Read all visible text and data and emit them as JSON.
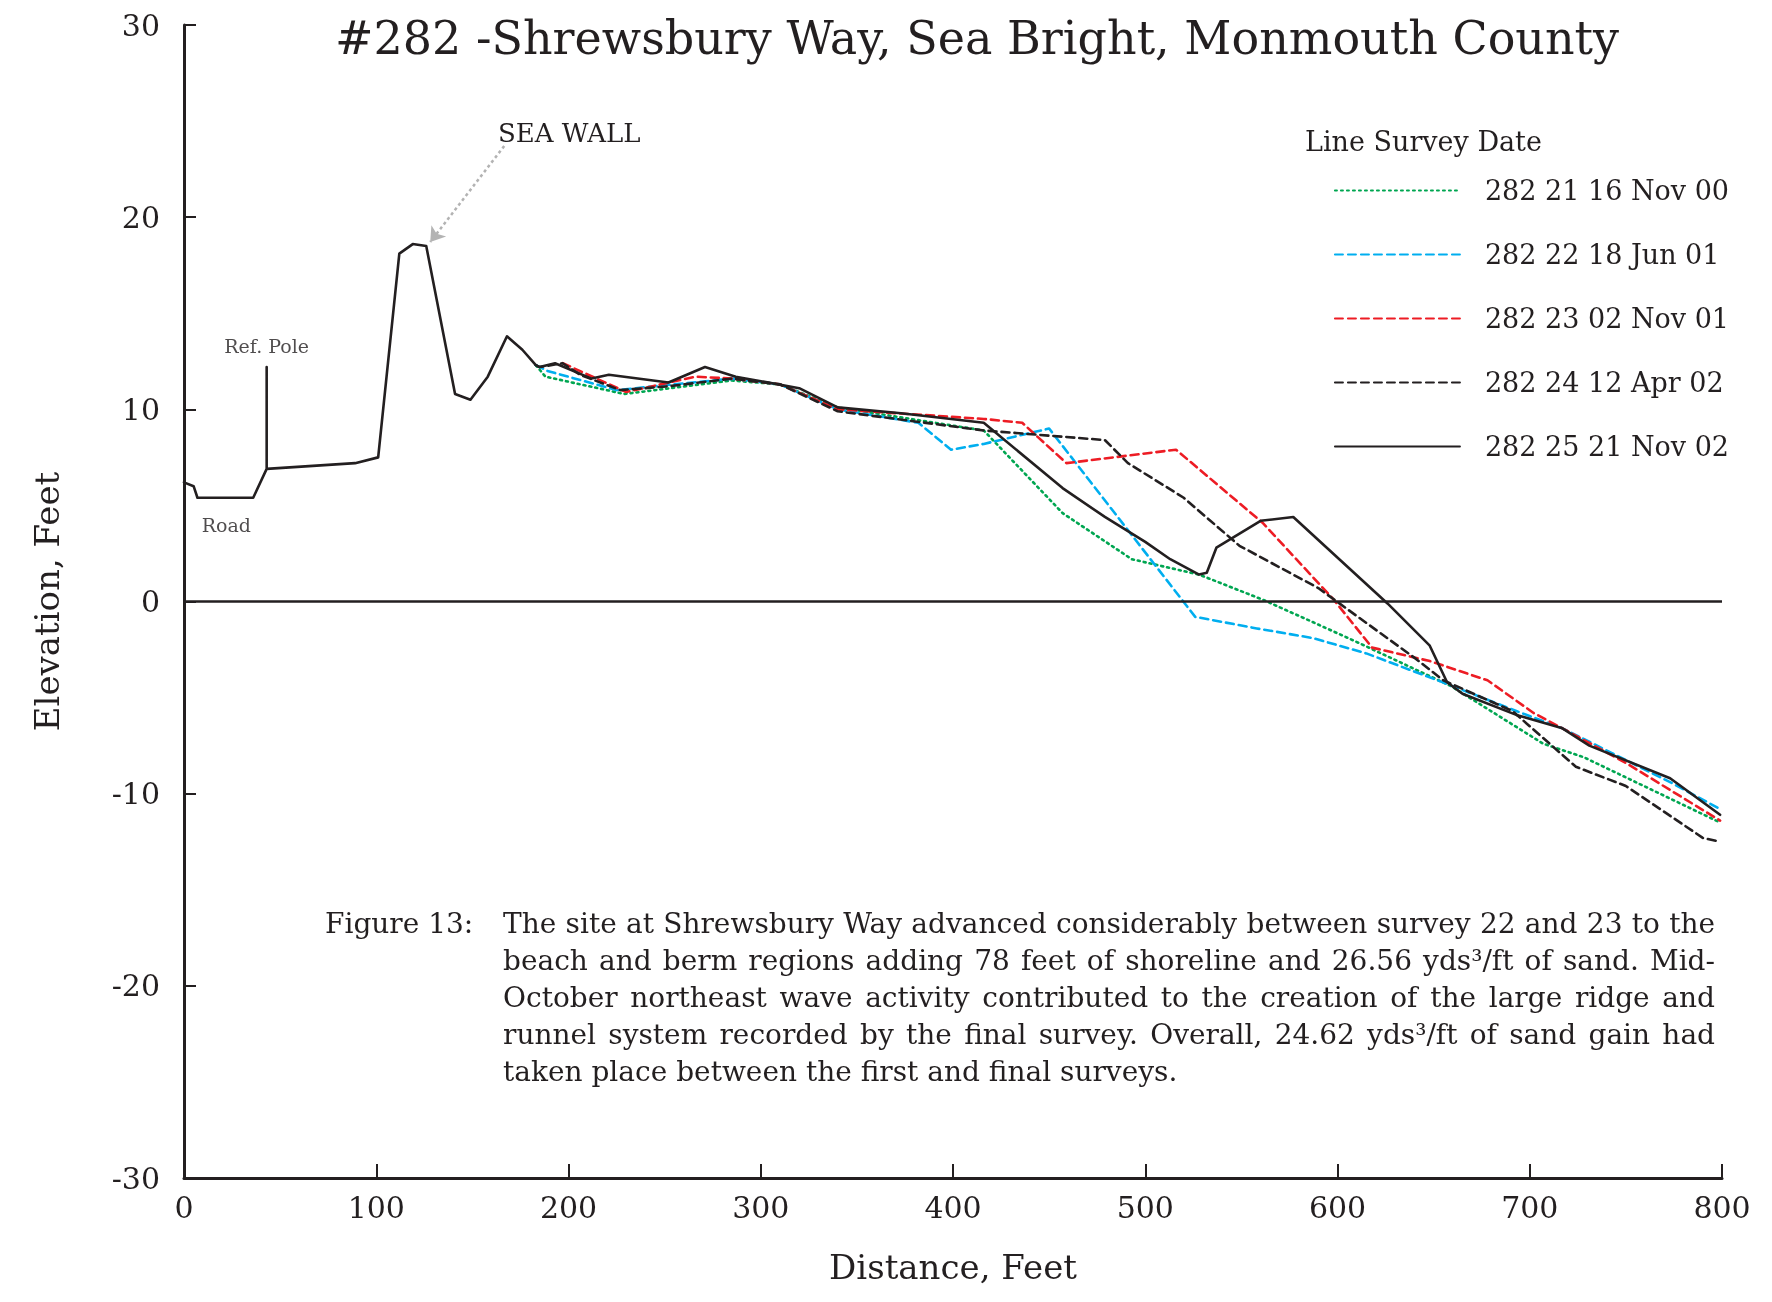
{
  "chart_data": {
    "type": "line",
    "title": "#282 -Shrewsbury Way, Sea Bright, Monmouth County",
    "xlabel": "Distance, Feet",
    "ylabel": "Elevation, Feet",
    "legend_title": "Line Survey Date",
    "legend": "top right",
    "grid": false,
    "marker": "none",
    "xlim": [
      0,
      800
    ],
    "xticks": [
      0,
      100,
      200,
      300,
      400,
      500,
      600,
      700,
      800
    ],
    "ylim": [
      -30,
      30
    ],
    "yticks": [
      -30,
      -20,
      -10,
      0,
      10,
      20,
      30
    ],
    "ref_lines": [
      {
        "axis": "y",
        "value": 0,
        "color": "#231f20"
      }
    ],
    "annotations": [
      {
        "text": "SEA WALL",
        "x": 126,
        "y": 18.5
      },
      {
        "text": "Ref. Pole",
        "x": 43,
        "y": 12.2
      },
      {
        "text": "Road",
        "x": 22,
        "y": 5.4
      },
      "Figure 13:",
      "The site at Shrewsbury Way advanced considerably between survey 22 and 23 to the beach and berm regions adding 78 feet of shoreline and 26.56 yds³/ft of sand. Mid-October northeast wave activity contributed to the creation of the large ridge and runnel system recorded by the final survey. Overall, 24.62 yds³/ft of sand gain had taken place between the first and final surveys."
    ],
    "series": [
      {
        "name": "282 21 16 Nov 00",
        "color": "#00a651",
        "line_style": "dotted",
        "x": [
          183,
          188,
          229,
          285,
          310,
          340,
          416,
          457,
          493,
          528,
          561,
          590,
          612,
          659,
          707,
          728,
          799
        ],
        "values": [
          12.3,
          11.7,
          10.8,
          11.5,
          11.3,
          10.1,
          8.9,
          4.6,
          2.2,
          1.4,
          0.1,
          -1.2,
          -2.2,
          -4.4,
          -7.4,
          -8.1,
          -11.5
        ]
      },
      {
        "name": "282 22 18 Jun 01",
        "color": "#00aeef",
        "line_style": "dashed",
        "x": [
          183,
          189,
          225,
          285,
          310,
          340,
          382,
          399,
          416,
          450,
          526,
          558,
          587,
          615,
          652,
          693,
          717,
          773,
          799
        ],
        "values": [
          12.3,
          12.0,
          11.0,
          11.6,
          11.3,
          10.0,
          9.3,
          7.9,
          8.2,
          9.0,
          -0.8,
          -1.4,
          -1.9,
          -2.7,
          -4.1,
          -5.7,
          -6.6,
          -9.4,
          -10.8
        ]
      },
      {
        "name": "282 23 02 Nov 01",
        "color": "#ed1c24",
        "line_style": "dashed",
        "x": [
          197,
          230,
          266,
          285,
          310,
          340,
          416,
          436,
          459,
          516,
          561,
          598,
          618,
          648,
          678,
          702,
          717,
          750,
          799
        ],
        "values": [
          12.4,
          10.9,
          11.7,
          11.6,
          11.3,
          10.0,
          9.5,
          9.3,
          7.2,
          7.9,
          4.1,
          0.1,
          -2.4,
          -3.1,
          -4.1,
          -5.8,
          -6.6,
          -8.4,
          -11.4
        ]
      },
      {
        "name": "282 24 12 Apr 02",
        "color": "#231f20",
        "line_style": "dashed",
        "x": [
          183,
          185,
          197,
          206,
          227,
          252,
          285,
          310,
          340,
          416,
          479,
          491,
          520,
          549,
          590,
          601,
          641,
          655,
          691,
          724,
          750,
          790,
          799
        ],
        "values": [
          12.3,
          12.2,
          12.4,
          11.8,
          11.0,
          11.2,
          11.6,
          11.3,
          9.9,
          8.9,
          8.4,
          7.2,
          5.4,
          2.9,
          0.7,
          -0.1,
          -3.0,
          -4.1,
          -5.7,
          -8.6,
          -9.6,
          -12.3,
          -12.5
        ]
      },
      {
        "name": "282 25 21 Nov 02",
        "color": "#231f20",
        "line_style": "solid",
        "x": [
          0,
          5,
          7,
          36,
          43,
          43,
          43,
          89,
          101,
          112,
          119,
          126,
          141,
          149,
          158,
          168,
          176,
          183,
          185,
          193,
          212,
          221,
          252,
          271,
          287,
          320,
          340,
          373,
          416,
          457,
          479,
          500,
          513,
          528,
          532,
          537,
          560,
          577,
          626,
          648,
          657,
          665,
          693,
          717,
          731,
          773,
          799
        ],
        "values": [
          6.2,
          6.0,
          5.4,
          5.4,
          6.9,
          12.2,
          6.9,
          7.2,
          7.5,
          18.1,
          18.6,
          18.5,
          10.8,
          10.5,
          11.7,
          13.8,
          13.1,
          12.3,
          12.2,
          12.4,
          11.6,
          11.8,
          11.4,
          12.2,
          11.7,
          11.1,
          10.1,
          9.8,
          9.3,
          5.9,
          4.4,
          3.1,
          2.2,
          1.4,
          1.5,
          2.8,
          4.2,
          4.4,
          -0.1,
          -2.3,
          -4.2,
          -4.8,
          -5.9,
          -6.6,
          -7.5,
          -9.2,
          -11.1
        ]
      }
    ]
  }
}
